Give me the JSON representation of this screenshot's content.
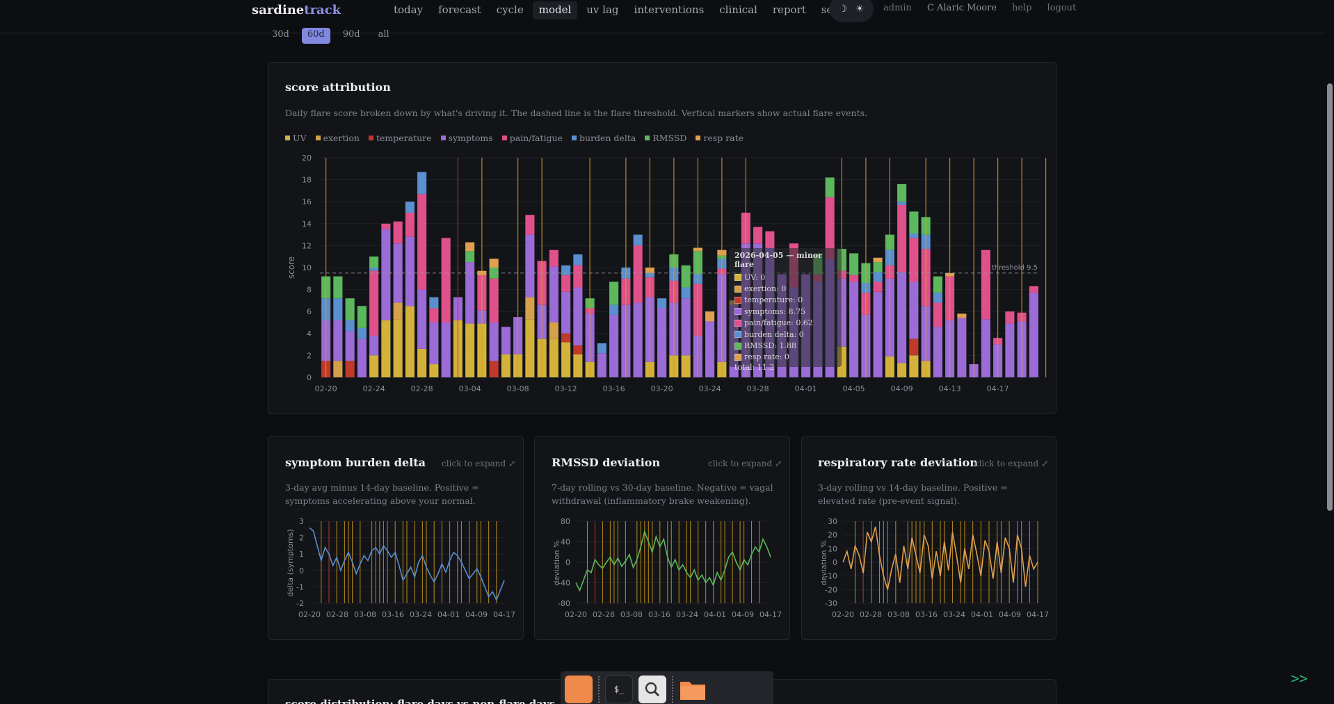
{
  "nav": {
    "brand_main": "sardine",
    "brand_accent": "track",
    "items": [
      "today",
      "forecast",
      "cycle",
      "model",
      "uv lag",
      "interventions",
      "clinical",
      "report",
      "search"
    ],
    "active": "model",
    "theme_dark_icon": "☽",
    "theme_light_icon": "☀",
    "admin": "admin",
    "user": "C Alaric Moore",
    "help": "help",
    "logout": "logout"
  },
  "range": {
    "options": [
      "30d",
      "60d",
      "90d",
      "all"
    ],
    "active": "60d"
  },
  "attribution": {
    "title": "score attribution",
    "description": "Daily flare score broken down by what's driving it. The dashed line is the flare threshold. Vertical markers show actual flare events.",
    "threshold_label": "threshold 9.5",
    "tooltip": {
      "header": "2026-04-05 — minor flare",
      "rows": [
        "UV: 0",
        "exertion: 0",
        "temperature: 0",
        "symptoms: 8.75",
        "pain/fatigue: 0.62",
        "burden delta: 0",
        "RMSSD: 1.88",
        "resp rate: 0"
      ],
      "total": "total: 11.2"
    }
  },
  "burden": {
    "title": "symptom burden delta",
    "expand": "click to expand ⤢",
    "description": "3-day avg minus 14-day baseline. Positive = symptoms accelerating above your normal."
  },
  "rmssd": {
    "title": "RMSSD deviation",
    "expand": "click to expand ⤢",
    "description": "7-day rolling vs 30-day baseline. Negative = vagal withdrawal (inflammatory brake weakening)."
  },
  "resp": {
    "title": "respiratory rate deviation",
    "expand": "click to expand ⤢",
    "description": "3-day rolling vs 14-day baseline. Positive = elevated rate (pre-event signal)."
  },
  "bottom_title": "score distribution: flare days vs non-flare days",
  "dock": {
    "apps": [
      "files-app",
      "terminal-app",
      "search-app",
      "folder-app"
    ]
  },
  "footer_chevron": ">>",
  "colors": {
    "UV": "#d4b13a",
    "exertion": "#d4a04a",
    "temperature": "#c0392b",
    "symptoms": "#9b6bd8",
    "pain/fatigue": "#e0508a",
    "burden delta": "#5a8fd0",
    "RMSSD": "#5cb85c",
    "resp rate": "#e0a050",
    "accent": "#8088e0"
  },
  "chart_data": [
    {
      "type": "bar",
      "stacked": true,
      "title": "score attribution",
      "ylabel": "score",
      "ylim": [
        0,
        20
      ],
      "yticks": [
        0,
        2,
        4,
        6,
        8,
        10,
        12,
        14,
        16,
        18,
        20
      ],
      "threshold": 9.5,
      "xticks": [
        "02-20",
        "02-24",
        "02-28",
        "03-04",
        "03-08",
        "03-12",
        "03-16",
        "03-20",
        "03-24",
        "03-28",
        "04-01",
        "04-05",
        "04-09",
        "04-13",
        "04-17"
      ],
      "series_names": [
        "UV",
        "exertion",
        "temperature",
        "symptoms",
        "pain/fatigue",
        "burden delta",
        "RMSSD",
        "resp rate"
      ],
      "days": [
        [
          0,
          0,
          1.5,
          3.7,
          0,
          2,
          2,
          0
        ],
        [
          0,
          1.5,
          0,
          3.7,
          0,
          2,
          2,
          0
        ],
        [
          0,
          0,
          1.5,
          2.7,
          0,
          1,
          2,
          0
        ],
        [
          0,
          0,
          0,
          3.5,
          0,
          1,
          2,
          0
        ],
        [
          2,
          0,
          0,
          1.8,
          5.9,
          0.3,
          1,
          0
        ],
        [
          5.2,
          0,
          0,
          8.3,
          0.5,
          0,
          0,
          0
        ],
        [
          5.3,
          1.5,
          0,
          5.4,
          2,
          0,
          0,
          0
        ],
        [
          6.5,
          0,
          0,
          6.3,
          2.2,
          1,
          0,
          0
        ],
        [
          2.6,
          0,
          0,
          5.4,
          8.7,
          2,
          0,
          0
        ],
        [
          1.2,
          0,
          0,
          3.8,
          1.3,
          1,
          0,
          0
        ],
        [
          0,
          0,
          0,
          5,
          7.7,
          0,
          0,
          0
        ],
        [
          5.2,
          0,
          0,
          2.1,
          0,
          0,
          0,
          0
        ],
        [
          4.9,
          0,
          0,
          5.6,
          0,
          0,
          1,
          0.8
        ],
        [
          4.9,
          0,
          0,
          1.2,
          3.2,
          0,
          0,
          0.4
        ],
        [
          0,
          0,
          1.5,
          3.5,
          4,
          0,
          1,
          0.8
        ],
        [
          2.1,
          0,
          0,
          2.5,
          0,
          0,
          0,
          0
        ],
        [
          2.1,
          0,
          0,
          3.4,
          0,
          0,
          0,
          0
        ],
        [
          5.3,
          2,
          0,
          5.7,
          1.8,
          0,
          0,
          0
        ],
        [
          3.5,
          0,
          0,
          3.1,
          4,
          0,
          0,
          0
        ],
        [
          3.5,
          1.5,
          0,
          5.1,
          1.5,
          0,
          0,
          0
        ],
        [
          3.2,
          0,
          0.8,
          3.8,
          1.5,
          0.9,
          0,
          0
        ],
        [
          2.1,
          0,
          0.8,
          5.3,
          2,
          1,
          0,
          0
        ],
        [
          1.4,
          0,
          0,
          4.4,
          0.5,
          0,
          0.9,
          0
        ],
        [
          0,
          0,
          0,
          2.2,
          0,
          0.9,
          0,
          0
        ],
        [
          0,
          0,
          0,
          5.7,
          0,
          0.9,
          2.1,
          0
        ],
        [
          0,
          0,
          0,
          6.6,
          2.4,
          1,
          0,
          0
        ],
        [
          0,
          0,
          0,
          6.8,
          5.2,
          1,
          0,
          0
        ],
        [
          1.4,
          0,
          0,
          5.9,
          1.8,
          0.4,
          0,
          0.5
        ],
        [
          0,
          0,
          0,
          6.3,
          0,
          0.9,
          0,
          0
        ],
        [
          2,
          0,
          0,
          4.8,
          2,
          1.2,
          1.2,
          0
        ],
        [
          2,
          0,
          0,
          5.2,
          0,
          1,
          2,
          0
        ],
        [
          0,
          0,
          0,
          3.8,
          4.7,
          0.9,
          2.1,
          0.3
        ],
        [
          0,
          0,
          0,
          5.1,
          0,
          0,
          0,
          0.9
        ],
        [
          1.4,
          0,
          0,
          8,
          0.5,
          0.9,
          0.3,
          0.5
        ],
        [
          0,
          0,
          0,
          6.6,
          0,
          0,
          0,
          0.4
        ],
        [
          0,
          0,
          0,
          12.2,
          2.8,
          0,
          0,
          0
        ],
        [
          0,
          0,
          0,
          12.2,
          1.5,
          0,
          0,
          0
        ],
        [
          0,
          0,
          0,
          11.8,
          1.5,
          0,
          0,
          0
        ],
        [
          0,
          0,
          0,
          9.4,
          0,
          0,
          0,
          0
        ],
        [
          0,
          0,
          0,
          8.2,
          4,
          0,
          0,
          0
        ],
        [
          0,
          0,
          0,
          9.4,
          0,
          0,
          0,
          0
        ],
        [
          0,
          0,
          0,
          8.75,
          0.62,
          0,
          1.88,
          0
        ],
        [
          0,
          0,
          0,
          10.8,
          5.6,
          0,
          1.8,
          0
        ],
        [
          2.8,
          0,
          0,
          6.2,
          0.7,
          0,
          2,
          0
        ],
        [
          0,
          0,
          0,
          8.7,
          0.6,
          0,
          2,
          0
        ],
        [
          0,
          0,
          0,
          5.7,
          2,
          0.9,
          1.8,
          0
        ],
        [
          0,
          0,
          0,
          7.8,
          0.9,
          0.9,
          0.9,
          0.4
        ],
        [
          1.9,
          0,
          0,
          7.1,
          1.2,
          1.4,
          1.4,
          0
        ],
        [
          1.3,
          0,
          0,
          8.3,
          6.1,
          0.3,
          1.6,
          0
        ],
        [
          2,
          0,
          1.5,
          5.2,
          4,
          0.4,
          2,
          0
        ],
        [
          1.5,
          0,
          0,
          5,
          5.2,
          1.3,
          1.6,
          0
        ],
        [
          0,
          0,
          0,
          4.6,
          2.2,
          0.9,
          1.5,
          0
        ],
        [
          0,
          0,
          0,
          5.2,
          4,
          0,
          0,
          0.3
        ],
        [
          0,
          0,
          0,
          5.4,
          0,
          0,
          0,
          0.4
        ],
        [
          0,
          0,
          0,
          1.2,
          0,
          0,
          0,
          0
        ],
        [
          0,
          0,
          0,
          5.3,
          6.3,
          0,
          0,
          0
        ],
        [
          0,
          0,
          0,
          3,
          0.6,
          0,
          0,
          0
        ],
        [
          0,
          0,
          0,
          4.9,
          1.1,
          0,
          0,
          0
        ],
        [
          0,
          0,
          0,
          5.1,
          0.8,
          0,
          0,
          0
        ],
        [
          0,
          0,
          0,
          7.7,
          0.6,
          0,
          0,
          0
        ]
      ],
      "flare_markers_day_index": [
        0,
        11,
        13,
        16,
        18,
        22,
        25,
        27,
        29,
        31,
        33,
        35,
        43,
        45,
        47,
        50,
        52,
        54,
        56,
        58,
        60,
        62,
        65,
        67,
        70,
        72,
        74,
        76,
        78,
        80,
        82,
        86
      ]
    },
    {
      "type": "line",
      "title": "symptom burden delta",
      "ylabel": "delta (symptoms)",
      "ylim": [
        -2,
        3
      ],
      "yticks": [
        -2,
        -1,
        0,
        1,
        2,
        3
      ],
      "xticks": [
        "02-20",
        "02-28",
        "03-08",
        "03-16",
        "03-24",
        "04-01",
        "04-09",
        "04-17"
      ],
      "values": [
        2.6,
        2.4,
        1.5,
        0.6,
        1.4,
        1.0,
        0.3,
        0.8,
        0.0,
        0.6,
        1.1,
        0.5,
        -0.2,
        0.4,
        0.9,
        0.6,
        1.2,
        1.4,
        1.0,
        1.5,
        1.2,
        0.8,
        1.1,
        0.3,
        -0.6,
        -0.2,
        0.2,
        -0.4,
        0.5,
        0.9,
        0.2,
        -0.3,
        -0.7,
        -0.2,
        0.4,
        -0.1,
        0.6,
        1.1,
        0.9,
        0.5,
        0.0,
        -0.5,
        -0.2,
        0.1,
        -0.4,
        -1.0,
        -1.6,
        -1.3,
        -1.8,
        -1.2,
        -0.6
      ]
    },
    {
      "type": "line",
      "title": "RMSSD deviation",
      "ylabel": "deviation %",
      "ylim": [
        -80,
        80
      ],
      "yticks": [
        -80,
        -40,
        0,
        40,
        80
      ],
      "xticks": [
        "02-20",
        "02-28",
        "03-08",
        "03-16",
        "03-24",
        "04-01",
        "04-09",
        "04-17"
      ],
      "values": [
        -40,
        -55,
        -35,
        -15,
        -20,
        5,
        -5,
        -12,
        0,
        10,
        -5,
        8,
        -8,
        2,
        15,
        -10,
        5,
        30,
        60,
        40,
        20,
        50,
        30,
        45,
        10,
        -10,
        5,
        -15,
        -5,
        -20,
        -30,
        -15,
        -35,
        -25,
        -40,
        -30,
        -45,
        -20,
        -35,
        -15,
        10,
        20,
        0,
        -15,
        5,
        -5,
        15,
        30,
        20,
        45,
        30,
        10
      ]
    },
    {
      "type": "line",
      "title": "respiratory rate deviation",
      "ylabel": "deviation %",
      "ylim": [
        -30,
        30
      ],
      "yticks": [
        -30,
        -20,
        -10,
        0,
        10,
        20,
        30
      ],
      "xticks": [
        "02-20",
        "02-28",
        "03-08",
        "03-16",
        "03-24",
        "04-01",
        "04-09",
        "04-17"
      ],
      "values": [
        0,
        8,
        -5,
        12,
        5,
        -8,
        22,
        15,
        26,
        5,
        -10,
        -20,
        -5,
        6,
        -15,
        12,
        -5,
        18,
        5,
        -8,
        20,
        12,
        -12,
        8,
        -10,
        15,
        -6,
        22,
        5,
        -15,
        10,
        -5,
        20,
        6,
        -10,
        16,
        8,
        -12,
        15,
        -8,
        18,
        10,
        -15,
        20,
        10,
        -18,
        5,
        -5,
        0
      ]
    }
  ]
}
